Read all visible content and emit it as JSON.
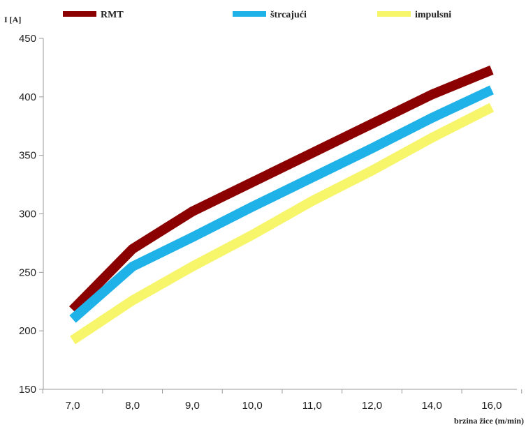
{
  "chart_data": {
    "type": "line",
    "title": "",
    "ylabel": "I [A]",
    "xlabel": "brzina žice (m/min)",
    "categories": [
      "7,0",
      "8,0",
      "9,0",
      "10,0",
      "11,0",
      "12,0",
      "14,0",
      "16,0"
    ],
    "ylim": [
      150,
      450
    ],
    "yticks": [
      150,
      200,
      250,
      300,
      350,
      400,
      450
    ],
    "grid": false,
    "legend_position": "top",
    "series": [
      {
        "name": "RMT",
        "color": "#8b0000",
        "values": [
          218,
          270,
          302,
          327,
          352,
          377,
          402,
          423
        ]
      },
      {
        "name": "štrcajući",
        "color": "#1fb2e8",
        "values": [
          210,
          255,
          280,
          306,
          331,
          356,
          382,
          406
        ]
      },
      {
        "name": "impulsni",
        "color": "#f7f56a",
        "values": [
          192,
          226,
          255,
          282,
          311,
          337,
          365,
          391
        ]
      }
    ]
  }
}
